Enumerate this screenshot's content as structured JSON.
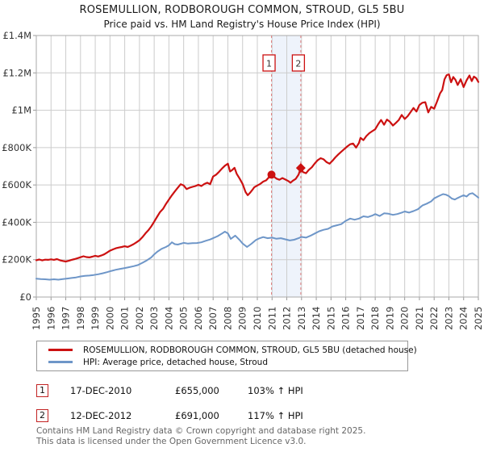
{
  "header": {
    "title": "ROSEMULLION, RODBOROUGH COMMON, STROUD, GL5 5BU",
    "subtitle": "Price paid vs. HM Land Registry's House Price Index (HPI)"
  },
  "legend": {
    "items": [
      {
        "label": "ROSEMULLION, RODBOROUGH COMMON, STROUD, GL5 5BU (detached house)",
        "color": "#cc1111"
      },
      {
        "label": "HPI: Average price, detached house, Stroud",
        "color": "#6e96c8"
      }
    ]
  },
  "transactions": [
    {
      "index": "1",
      "date": "17-DEC-2010",
      "price": "£655,000",
      "hpi_change": "103% ↑ HPI"
    },
    {
      "index": "2",
      "date": "12-DEC-2012",
      "price": "£691,000",
      "hpi_change": "117% ↑ HPI"
    }
  ],
  "footer": {
    "line1": "Contains HM Land Registry data © Crown copyright and database right 2025.",
    "line2": "This data is licensed under the Open Government Licence v3.0."
  },
  "chart_data": {
    "type": "line",
    "title": "ROSEMULLION, RODBOROUGH COMMON, STROUD, GL5 5BU",
    "subtitle": "Price paid vs. HM Land Registry's House Price Index (HPI)",
    "xlim": [
      1995,
      2025
    ],
    "ylim_k": [
      0,
      1400
    ],
    "grid": true,
    "x_ticks": [
      1995,
      1996,
      1997,
      1998,
      1999,
      2000,
      2001,
      2002,
      2003,
      2004,
      2005,
      2006,
      2007,
      2008,
      2009,
      2010,
      2011,
      2012,
      2013,
      2014,
      2015,
      2016,
      2017,
      2018,
      2019,
      2020,
      2021,
      2022,
      2023,
      2024,
      2025
    ],
    "y_ticks": [
      {
        "v": 0,
        "label": "£0"
      },
      {
        "v": 200,
        "label": "£200K"
      },
      {
        "v": 400,
        "label": "£400K"
      },
      {
        "v": 600,
        "label": "£600K"
      },
      {
        "v": 800,
        "label": "£800K"
      },
      {
        "v": 1000,
        "label": "£1M"
      },
      {
        "v": 1200,
        "label": "£1.2M"
      },
      {
        "v": 1400,
        "label": "£1.4M"
      }
    ],
    "highlight_span": {
      "from": 2010.96,
      "to": 2012.95,
      "fill": "#eef3fb",
      "edge_color": "#e07f7f"
    },
    "markers": [
      {
        "n": "1",
        "year": 2010.96,
        "value_k": 655,
        "shape": "circle"
      },
      {
        "n": "2",
        "year": 2012.95,
        "value_k": 691,
        "shape": "diamond"
      }
    ],
    "series": [
      {
        "name": "ROSEMULLION, RODBOROUGH COMMON, STROUD, GL5 5BU (detached house)",
        "color": "#cc1111",
        "width": 2.2,
        "points": [
          [
            1995.0,
            197
          ],
          [
            1995.2,
            201
          ],
          [
            1995.4,
            196
          ],
          [
            1995.6,
            200
          ],
          [
            1995.8,
            199
          ],
          [
            1996.0,
            202
          ],
          [
            1996.2,
            199
          ],
          [
            1996.4,
            203
          ],
          [
            1996.6,
            197
          ],
          [
            1996.8,
            193
          ],
          [
            1997.0,
            190
          ],
          [
            1997.2,
            194
          ],
          [
            1997.4,
            199
          ],
          [
            1997.6,
            203
          ],
          [
            1997.8,
            208
          ],
          [
            1998.0,
            213
          ],
          [
            1998.2,
            218
          ],
          [
            1998.4,
            214
          ],
          [
            1998.6,
            212
          ],
          [
            1998.8,
            216
          ],
          [
            1999.0,
            221
          ],
          [
            1999.2,
            217
          ],
          [
            1999.4,
            222
          ],
          [
            1999.6,
            228
          ],
          [
            1999.8,
            238
          ],
          [
            2000.0,
            248
          ],
          [
            2000.2,
            255
          ],
          [
            2000.4,
            261
          ],
          [
            2000.6,
            265
          ],
          [
            2000.8,
            268
          ],
          [
            2001.0,
            272
          ],
          [
            2001.2,
            268
          ],
          [
            2001.4,
            275
          ],
          [
            2001.6,
            283
          ],
          [
            2001.8,
            293
          ],
          [
            2002.0,
            304
          ],
          [
            2002.2,
            320
          ],
          [
            2002.4,
            340
          ],
          [
            2002.6,
            357
          ],
          [
            2002.8,
            378
          ],
          [
            2003.0,
            403
          ],
          [
            2003.2,
            430
          ],
          [
            2003.4,
            455
          ],
          [
            2003.6,
            472
          ],
          [
            2003.8,
            498
          ],
          [
            2004.0,
            522
          ],
          [
            2004.2,
            545
          ],
          [
            2004.4,
            565
          ],
          [
            2004.6,
            585
          ],
          [
            2004.8,
            604
          ],
          [
            2005.0,
            597
          ],
          [
            2005.2,
            578
          ],
          [
            2005.4,
            585
          ],
          [
            2005.6,
            590
          ],
          [
            2005.8,
            594
          ],
          [
            2006.0,
            601
          ],
          [
            2006.2,
            594
          ],
          [
            2006.4,
            605
          ],
          [
            2006.6,
            612
          ],
          [
            2006.8,
            604
          ],
          [
            2007.0,
            645
          ],
          [
            2007.2,
            655
          ],
          [
            2007.4,
            670
          ],
          [
            2007.6,
            688
          ],
          [
            2007.8,
            703
          ],
          [
            2008.0,
            714
          ],
          [
            2008.15,
            672
          ],
          [
            2008.3,
            680
          ],
          [
            2008.45,
            692
          ],
          [
            2008.6,
            660
          ],
          [
            2008.8,
            634
          ],
          [
            2009.0,
            606
          ],
          [
            2009.2,
            562
          ],
          [
            2009.35,
            545
          ],
          [
            2009.5,
            558
          ],
          [
            2009.65,
            572
          ],
          [
            2009.8,
            588
          ],
          [
            2010.0,
            597
          ],
          [
            2010.2,
            606
          ],
          [
            2010.4,
            618
          ],
          [
            2010.6,
            625
          ],
          [
            2010.8,
            642
          ],
          [
            2010.96,
            655
          ],
          [
            2011.1,
            646
          ],
          [
            2011.3,
            634
          ],
          [
            2011.5,
            628
          ],
          [
            2011.7,
            637
          ],
          [
            2011.9,
            629
          ],
          [
            2012.1,
            621
          ],
          [
            2012.25,
            612
          ],
          [
            2012.4,
            622
          ],
          [
            2012.6,
            632
          ],
          [
            2012.8,
            655
          ],
          [
            2012.95,
            691
          ],
          [
            2013.1,
            669
          ],
          [
            2013.3,
            663
          ],
          [
            2013.5,
            681
          ],
          [
            2013.7,
            695
          ],
          [
            2013.9,
            715
          ],
          [
            2014.1,
            733
          ],
          [
            2014.3,
            743
          ],
          [
            2014.5,
            737
          ],
          [
            2014.7,
            722
          ],
          [
            2014.9,
            714
          ],
          [
            2015.1,
            730
          ],
          [
            2015.3,
            748
          ],
          [
            2015.5,
            764
          ],
          [
            2015.7,
            778
          ],
          [
            2015.9,
            792
          ],
          [
            2016.1,
            806
          ],
          [
            2016.3,
            818
          ],
          [
            2016.5,
            822
          ],
          [
            2016.7,
            800
          ],
          [
            2016.9,
            825
          ],
          [
            2017.0,
            852
          ],
          [
            2017.2,
            840
          ],
          [
            2017.4,
            862
          ],
          [
            2017.6,
            877
          ],
          [
            2017.8,
            888
          ],
          [
            2018.0,
            898
          ],
          [
            2018.2,
            925
          ],
          [
            2018.4,
            948
          ],
          [
            2018.6,
            922
          ],
          [
            2018.8,
            950
          ],
          [
            2019.0,
            938
          ],
          [
            2019.2,
            918
          ],
          [
            2019.4,
            932
          ],
          [
            2019.6,
            948
          ],
          [
            2019.8,
            975
          ],
          [
            2020.0,
            953
          ],
          [
            2020.2,
            968
          ],
          [
            2020.4,
            990
          ],
          [
            2020.6,
            1012
          ],
          [
            2020.8,
            993
          ],
          [
            2021.0,
            1028
          ],
          [
            2021.2,
            1040
          ],
          [
            2021.4,
            1043
          ],
          [
            2021.6,
            988
          ],
          [
            2021.8,
            1018
          ],
          [
            2022.0,
            1008
          ],
          [
            2022.2,
            1048
          ],
          [
            2022.4,
            1090
          ],
          [
            2022.55,
            1108
          ],
          [
            2022.7,
            1165
          ],
          [
            2022.85,
            1188
          ],
          [
            2023.0,
            1192
          ],
          [
            2023.15,
            1150
          ],
          [
            2023.3,
            1178
          ],
          [
            2023.45,
            1162
          ],
          [
            2023.6,
            1135
          ],
          [
            2023.8,
            1166
          ],
          [
            2024.0,
            1124
          ],
          [
            2024.2,
            1160
          ],
          [
            2024.4,
            1186
          ],
          [
            2024.55,
            1156
          ],
          [
            2024.7,
            1180
          ],
          [
            2024.85,
            1172
          ],
          [
            2025.0,
            1151
          ]
        ]
      },
      {
        "name": "HPI: Average price, detached house, Stroud",
        "color": "#6e96c8",
        "width": 2,
        "points": [
          [
            1995.0,
            98
          ],
          [
            1995.3,
            96
          ],
          [
            1995.6,
            95
          ],
          [
            1995.9,
            93
          ],
          [
            1996.2,
            95
          ],
          [
            1996.5,
            93
          ],
          [
            1996.8,
            96
          ],
          [
            1997.1,
            99
          ],
          [
            1997.4,
            102
          ],
          [
            1997.7,
            105
          ],
          [
            1998.0,
            110
          ],
          [
            1998.3,
            113
          ],
          [
            1998.6,
            115
          ],
          [
            1998.9,
            118
          ],
          [
            1999.2,
            122
          ],
          [
            1999.5,
            127
          ],
          [
            1999.8,
            133
          ],
          [
            2000.1,
            140
          ],
          [
            2000.4,
            146
          ],
          [
            2000.7,
            151
          ],
          [
            2001.0,
            155
          ],
          [
            2001.3,
            160
          ],
          [
            2001.6,
            165
          ],
          [
            2001.9,
            171
          ],
          [
            2002.2,
            183
          ],
          [
            2002.5,
            196
          ],
          [
            2002.8,
            212
          ],
          [
            2003.0,
            228
          ],
          [
            2003.2,
            242
          ],
          [
            2003.5,
            258
          ],
          [
            2003.8,
            268
          ],
          [
            2004.0,
            277
          ],
          [
            2004.2,
            293
          ],
          [
            2004.4,
            283
          ],
          [
            2004.6,
            281
          ],
          [
            2004.8,
            285
          ],
          [
            2005.0,
            290
          ],
          [
            2005.3,
            286
          ],
          [
            2005.6,
            288
          ],
          [
            2005.9,
            289
          ],
          [
            2006.2,
            293
          ],
          [
            2006.5,
            301
          ],
          [
            2006.8,
            308
          ],
          [
            2007.0,
            315
          ],
          [
            2007.3,
            326
          ],
          [
            2007.6,
            340
          ],
          [
            2007.8,
            350
          ],
          [
            2008.0,
            341
          ],
          [
            2008.2,
            311
          ],
          [
            2008.5,
            329
          ],
          [
            2008.8,
            305
          ],
          [
            2009.0,
            287
          ],
          [
            2009.3,
            268
          ],
          [
            2009.6,
            285
          ],
          [
            2009.9,
            305
          ],
          [
            2010.1,
            313
          ],
          [
            2010.4,
            321
          ],
          [
            2010.7,
            315
          ],
          [
            2011.0,
            318
          ],
          [
            2011.3,
            312
          ],
          [
            2011.6,
            315
          ],
          [
            2011.9,
            309
          ],
          [
            2012.2,
            303
          ],
          [
            2012.5,
            307
          ],
          [
            2012.8,
            315
          ],
          [
            2013.0,
            322
          ],
          [
            2013.3,
            318
          ],
          [
            2013.6,
            328
          ],
          [
            2013.9,
            340
          ],
          [
            2014.2,
            352
          ],
          [
            2014.5,
            360
          ],
          [
            2014.8,
            365
          ],
          [
            2015.1,
            378
          ],
          [
            2015.4,
            384
          ],
          [
            2015.7,
            390
          ],
          [
            2016.0,
            408
          ],
          [
            2016.3,
            420
          ],
          [
            2016.6,
            414
          ],
          [
            2016.9,
            420
          ],
          [
            2017.2,
            432
          ],
          [
            2017.5,
            428
          ],
          [
            2017.8,
            436
          ],
          [
            2018.0,
            444
          ],
          [
            2018.3,
            434
          ],
          [
            2018.6,
            448
          ],
          [
            2018.9,
            446
          ],
          [
            2019.2,
            440
          ],
          [
            2019.5,
            444
          ],
          [
            2019.8,
            452
          ],
          [
            2020.0,
            458
          ],
          [
            2020.3,
            452
          ],
          [
            2020.6,
            460
          ],
          [
            2020.9,
            470
          ],
          [
            2021.2,
            490
          ],
          [
            2021.5,
            500
          ],
          [
            2021.8,
            512
          ],
          [
            2022.0,
            528
          ],
          [
            2022.3,
            540
          ],
          [
            2022.6,
            551
          ],
          [
            2022.8,
            548
          ],
          [
            2023.0,
            540
          ],
          [
            2023.2,
            527
          ],
          [
            2023.4,
            522
          ],
          [
            2023.6,
            530
          ],
          [
            2023.8,
            538
          ],
          [
            2024.0,
            545
          ],
          [
            2024.2,
            538
          ],
          [
            2024.4,
            552
          ],
          [
            2024.6,
            556
          ],
          [
            2024.8,
            545
          ],
          [
            2025.0,
            532
          ]
        ]
      }
    ]
  }
}
